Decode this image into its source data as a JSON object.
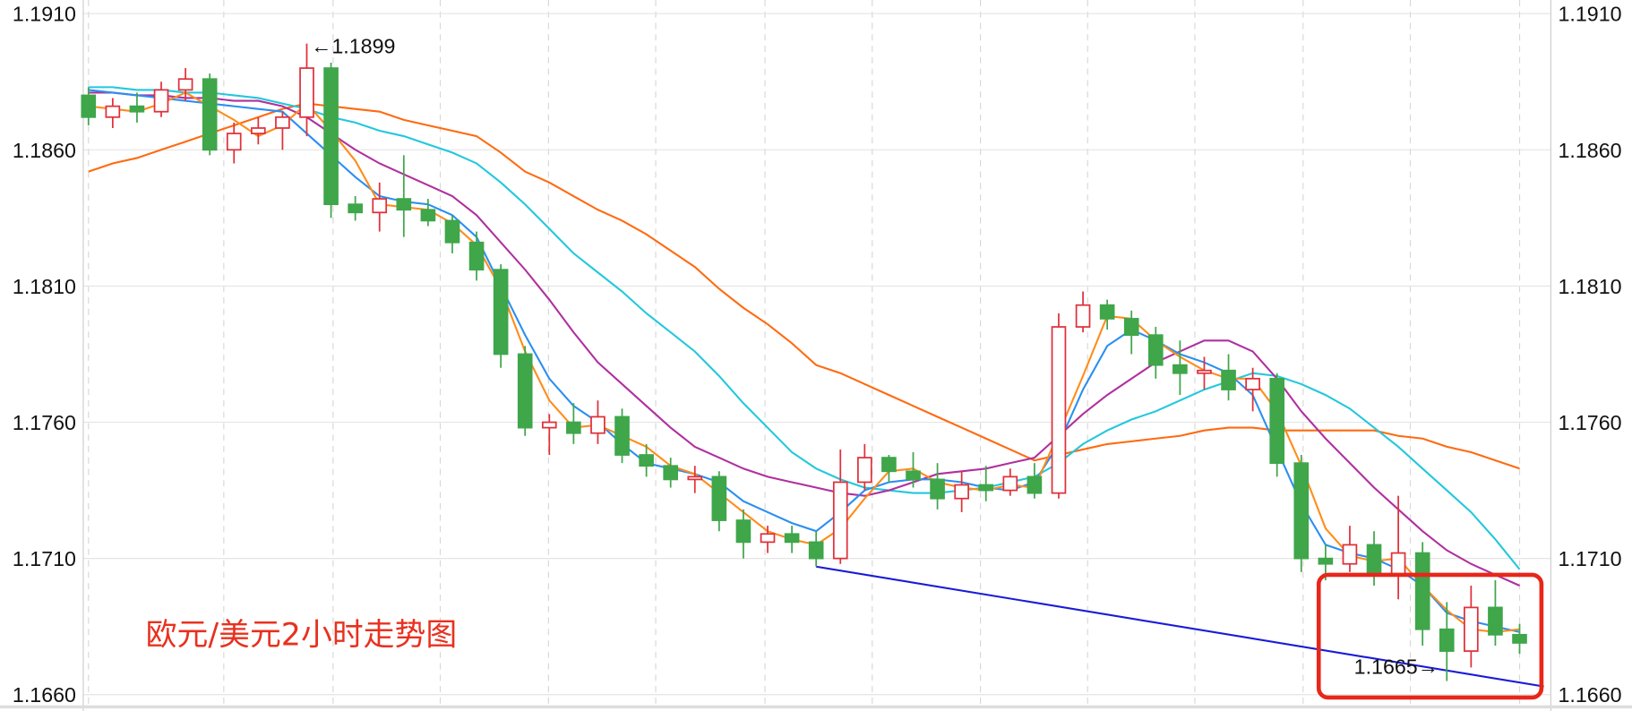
{
  "chart_data": {
    "type": "candlestick",
    "title": "欧元/美元2小时走势图",
    "annotations": [
      "←1.1899",
      "1.1665→"
    ],
    "categories": [
      null,
      null,
      null,
      null,
      null,
      null,
      null,
      null,
      null,
      null,
      null,
      null,
      null,
      null,
      null,
      null,
      null,
      null,
      null,
      null,
      null,
      null,
      null,
      null,
      null,
      null,
      null,
      null,
      null,
      null,
      null,
      null,
      null,
      null,
      null,
      null,
      null,
      null,
      null,
      null,
      null,
      null,
      null,
      null,
      null,
      null,
      null,
      null,
      null,
      null,
      null,
      null,
      null,
      null,
      null,
      null,
      null,
      null,
      null,
      null
    ],
    "open": [
      1.188,
      1.1872,
      1.1876,
      1.1874,
      1.1882,
      1.1886,
      1.186,
      1.1866,
      1.1868,
      1.1872,
      1.189,
      1.184,
      1.1837,
      1.1842,
      1.1838,
      1.1834,
      1.1826,
      1.1816,
      1.1785,
      1.1758,
      1.176,
      1.1756,
      1.1762,
      1.1748,
      1.1744,
      1.1739,
      1.174,
      1.1724,
      1.1716,
      1.1719,
      1.1716,
      1.171,
      1.1738,
      1.1747,
      1.1742,
      1.1739,
      1.1732,
      1.1737,
      1.1735,
      1.174,
      1.1734,
      1.1795,
      1.1803,
      1.1798,
      1.1792,
      1.1781,
      1.1778,
      1.1779,
      1.1772,
      1.1776,
      1.1745,
      1.171,
      1.1708,
      1.1715,
      1.1704,
      1.1712,
      1.1684,
      1.1676,
      1.1692,
      1.1682
    ],
    "high": [
      1.1883,
      1.1879,
      1.1881,
      1.1885,
      1.189,
      1.1888,
      1.187,
      1.1872,
      1.1874,
      1.1899,
      1.1892,
      1.1843,
      1.1848,
      1.1858,
      1.1842,
      1.1836,
      1.183,
      1.1818,
      1.1788,
      1.1763,
      1.1767,
      1.1768,
      1.1765,
      1.1752,
      1.1747,
      1.1744,
      1.1742,
      1.1728,
      1.1722,
      1.1722,
      1.172,
      1.175,
      1.1752,
      1.1748,
      1.1749,
      1.1745,
      1.1742,
      1.1744,
      1.1743,
      1.1745,
      1.18,
      1.1808,
      1.1805,
      1.1801,
      1.1795,
      1.179,
      1.1784,
      1.1785,
      1.178,
      1.1778,
      1.1748,
      1.1715,
      1.1722,
      1.172,
      1.1733,
      1.1716,
      1.1694,
      1.17,
      1.1702,
      1.1686
    ],
    "low": [
      1.1869,
      1.1868,
      1.187,
      1.1872,
      1.1878,
      1.1858,
      1.1855,
      1.1862,
      1.186,
      1.1865,
      1.1835,
      1.1834,
      1.183,
      1.1828,
      1.1832,
      1.1822,
      1.1812,
      1.178,
      1.1755,
      1.1748,
      1.1752,
      1.1752,
      1.1745,
      1.174,
      1.1736,
      1.1734,
      1.172,
      1.171,
      1.1712,
      1.1712,
      1.1707,
      1.1708,
      1.1735,
      1.1738,
      1.1736,
      1.1728,
      1.1727,
      1.1731,
      1.1733,
      1.1732,
      1.1732,
      1.1793,
      1.1794,
      1.1785,
      1.1776,
      1.177,
      1.1772,
      1.1768,
      1.1764,
      1.174,
      1.1705,
      1.1702,
      1.1705,
      1.17,
      1.1695,
      1.1678,
      1.1665,
      1.167,
      1.1678,
      1.1675
    ],
    "close": [
      1.1872,
      1.1876,
      1.1874,
      1.1882,
      1.1886,
      1.186,
      1.1866,
      1.1868,
      1.1872,
      1.189,
      1.184,
      1.1837,
      1.1842,
      1.1838,
      1.1834,
      1.1826,
      1.1816,
      1.1785,
      1.1758,
      1.176,
      1.1756,
      1.1762,
      1.1748,
      1.1744,
      1.1739,
      1.174,
      1.1724,
      1.1716,
      1.1719,
      1.1716,
      1.171,
      1.1738,
      1.1747,
      1.1742,
      1.1739,
      1.1732,
      1.1737,
      1.1735,
      1.174,
      1.1734,
      1.1795,
      1.1803,
      1.1798,
      1.1792,
      1.1781,
      1.1778,
      1.1779,
      1.1772,
      1.1776,
      1.1745,
      1.171,
      1.1708,
      1.1715,
      1.1704,
      1.1712,
      1.1684,
      1.1676,
      1.1692,
      1.1682,
      1.1679
    ],
    "up_color": "#e0303a",
    "down_color": "#3fa64a",
    "overlays": [
      {
        "color": "#ff6a10",
        "values": [
          1.1852,
          1.1855,
          1.1857,
          1.186,
          1.1863,
          1.1866,
          1.1869,
          1.1872,
          1.1875,
          1.1877,
          1.1876,
          1.1875,
          1.1874,
          1.1871,
          1.1869,
          1.1867,
          1.1865,
          1.1859,
          1.1852,
          1.1848,
          1.1843,
          1.1838,
          1.1834,
          1.1829,
          1.1823,
          1.1817,
          1.1809,
          1.1802,
          1.1796,
          1.1789,
          1.1781,
          1.1778,
          1.1774,
          1.177,
          1.1766,
          1.1762,
          1.1758,
          1.1754,
          1.175,
          1.1746,
          1.1748,
          1.175,
          1.1752,
          1.1753,
          1.1754,
          1.1755,
          1.1757,
          1.1758,
          1.1758,
          1.1757,
          1.1757,
          1.1757,
          1.1757,
          1.1757,
          1.1755,
          1.1754,
          1.1751,
          1.1749,
          1.1746,
          1.1743
        ]
      },
      {
        "color": "#22c8dc",
        "values": [
          1.1883,
          1.1883,
          1.1882,
          1.1882,
          1.1881,
          1.1881,
          1.188,
          1.1879,
          1.1877,
          1.1875,
          1.1872,
          1.187,
          1.1867,
          1.1865,
          1.1862,
          1.1859,
          1.1855,
          1.1848,
          1.184,
          1.1831,
          1.1822,
          1.1815,
          1.1808,
          1.18,
          1.1793,
          1.1786,
          1.1777,
          1.1767,
          1.1758,
          1.1749,
          1.1743,
          1.1739,
          1.1736,
          1.1735,
          1.1734,
          1.1734,
          1.1735,
          1.1736,
          1.1738,
          1.174,
          1.1745,
          1.1752,
          1.1757,
          1.1761,
          1.1764,
          1.1768,
          1.1772,
          1.1775,
          1.1778,
          1.1777,
          1.1774,
          1.177,
          1.1765,
          1.1758,
          1.1751,
          1.1743,
          1.1735,
          1.1727,
          1.1717,
          1.1706
        ]
      },
      {
        "color": "#b0309e",
        "values": [
          1.1881,
          1.1881,
          1.188,
          1.188,
          1.1879,
          1.1879,
          1.1878,
          1.1878,
          1.1876,
          1.1872,
          1.1866,
          1.186,
          1.1855,
          1.1851,
          1.1847,
          1.1843,
          1.1836,
          1.1826,
          1.1816,
          1.1805,
          1.1793,
          1.1782,
          1.1774,
          1.1766,
          1.1758,
          1.1751,
          1.1747,
          1.1743,
          1.174,
          1.1738,
          1.1736,
          1.1734,
          1.1733,
          1.1735,
          1.1738,
          1.1741,
          1.1742,
          1.1743,
          1.1745,
          1.1747,
          1.1755,
          1.1763,
          1.177,
          1.1776,
          1.1782,
          1.1786,
          1.179,
          1.179,
          1.1786,
          1.1776,
          1.1764,
          1.1754,
          1.1745,
          1.1736,
          1.1728,
          1.172,
          1.1713,
          1.1708,
          1.1704,
          1.17
        ]
      },
      {
        "color": "#2a8ff0",
        "values": [
          1.1882,
          1.1881,
          1.188,
          1.1879,
          1.1878,
          1.1877,
          1.1876,
          1.1875,
          1.1874,
          1.1866,
          1.1858,
          1.185,
          1.1843,
          1.1841,
          1.184,
          1.1836,
          1.1828,
          1.181,
          1.1792,
          1.1776,
          1.1766,
          1.176,
          1.1752,
          1.1745,
          1.1743,
          1.1741,
          1.1738,
          1.1731,
          1.1727,
          1.1723,
          1.172,
          1.1727,
          1.1735,
          1.1738,
          1.1739,
          1.1739,
          1.1738,
          1.1736,
          1.1735,
          1.1738,
          1.1752,
          1.1772,
          1.1788,
          1.1794,
          1.179,
          1.1785,
          1.1782,
          1.1778,
          1.177,
          1.175,
          1.173,
          1.1715,
          1.1712,
          1.171,
          1.1706,
          1.17,
          1.169,
          1.1687,
          1.1685,
          1.1683
        ]
      },
      {
        "color": "#ff8c1a",
        "values": [
          1.1876,
          1.1875,
          1.1874,
          1.1877,
          1.1881,
          1.1876,
          1.1871,
          1.1865,
          1.1869,
          1.1877,
          1.1867,
          1.1856,
          1.184,
          1.1839,
          1.1838,
          1.1833,
          1.1825,
          1.1809,
          1.1786,
          1.1768,
          1.1758,
          1.1759,
          1.1755,
          1.1751,
          1.1744,
          1.1741,
          1.1734,
          1.1727,
          1.172,
          1.1717,
          1.1715,
          1.1721,
          1.1732,
          1.1742,
          1.1743,
          1.1738,
          1.1736,
          1.1735,
          1.1737,
          1.1736,
          1.1756,
          1.1777,
          1.1799,
          1.1798,
          1.179,
          1.1784,
          1.1779,
          1.1776,
          1.1776,
          1.1764,
          1.1744,
          1.1721,
          1.1711,
          1.1709,
          1.171,
          1.17,
          1.1691,
          1.1684,
          1.1683,
          1.1684
        ]
      }
    ],
    "trendline": {
      "color": "#1a1ad8",
      "x": [
        30,
        60
      ],
      "values": [
        1.1707,
        1.1663
      ]
    },
    "ylim": [
      1.1654,
      1.1915
    ],
    "yticks": [
      {
        "value": 1.166,
        "label": "1.1660"
      },
      {
        "value": 1.171,
        "label": "1.1710"
      },
      {
        "value": 1.176,
        "label": "1.1760"
      },
      {
        "value": 1.181,
        "label": "1.1810"
      },
      {
        "value": 1.186,
        "label": "1.1860"
      },
      {
        "value": 1.191,
        "label": "1.1910"
      }
    ],
    "grid": true
  }
}
